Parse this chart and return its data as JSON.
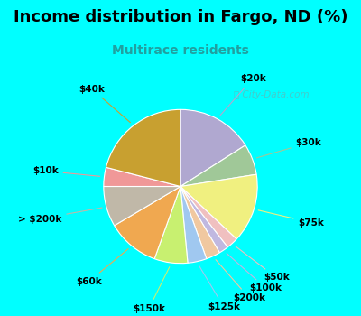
{
  "title": "Income distribution in Fargo, ND (%)",
  "subtitle": "Multirace residents",
  "bg_outer": "#00FFFF",
  "bg_inner_top": "#d8f5ee",
  "bg_inner_bot": "#e8f8f0",
  "watermark": "City-Data.com",
  "slices": [
    {
      "label": "$20k",
      "value": 16.0,
      "color": "#b0a8d0"
    },
    {
      "label": "$30k",
      "value": 6.5,
      "color": "#a0c898"
    },
    {
      "label": "$75k",
      "value": 14.5,
      "color": "#f0f080"
    },
    {
      "label": "$50k",
      "value": 2.5,
      "color": "#f0c0c0"
    },
    {
      "label": "$100k",
      "value": 2.0,
      "color": "#c0b8e0"
    },
    {
      "label": "$200k",
      "value": 3.0,
      "color": "#f0c8a0"
    },
    {
      "label": "$125k",
      "value": 4.0,
      "color": "#a0c8f0"
    },
    {
      "label": "$150k",
      "value": 7.0,
      "color": "#c8f070"
    },
    {
      "label": "$60k",
      "value": 11.0,
      "color": "#f0a850"
    },
    {
      "label": "> $200k",
      "value": 8.5,
      "color": "#c0b8a8"
    },
    {
      "label": "$10k",
      "value": 4.0,
      "color": "#f09898"
    },
    {
      "label": "$40k",
      "value": 21.0,
      "color": "#c8a030"
    }
  ],
  "title_fontsize": 13,
  "subtitle_fontsize": 10,
  "label_fontsize": 7.5
}
